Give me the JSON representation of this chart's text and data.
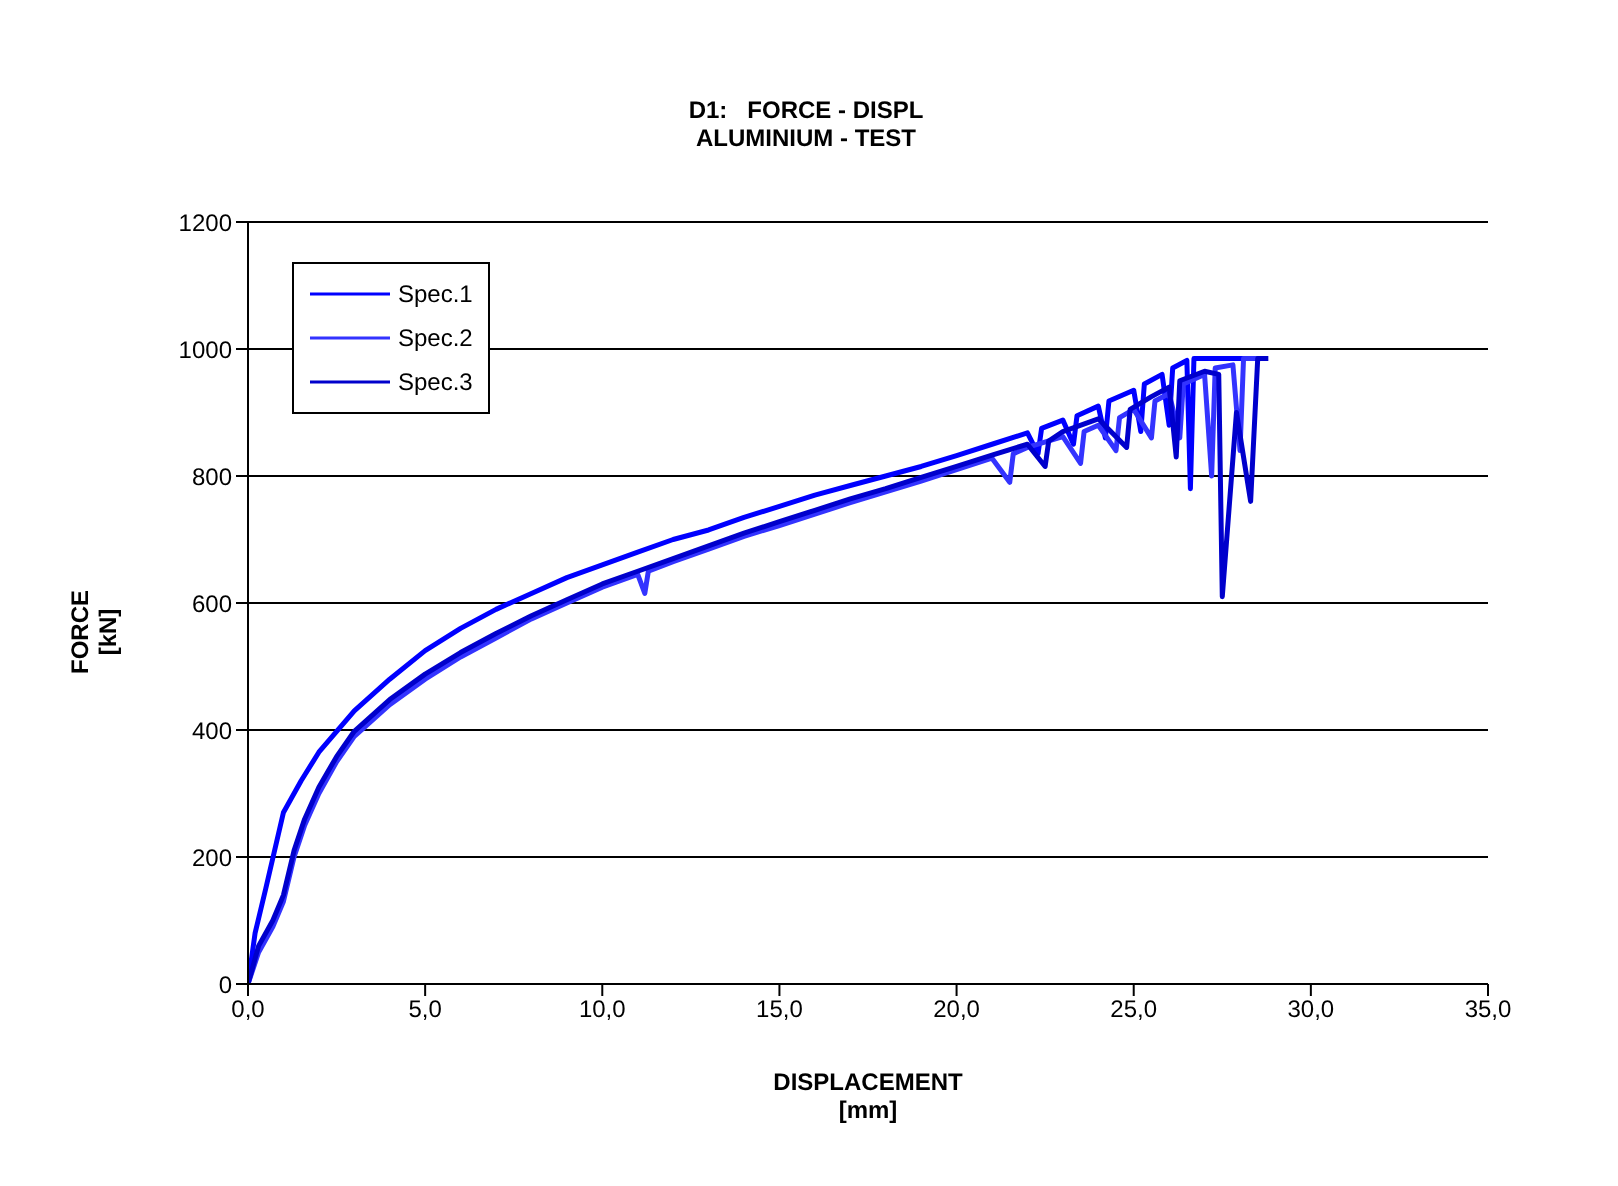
{
  "chart_data": {
    "type": "line",
    "title": "D1:   FORCE - DISPL",
    "subtitle": "ALUMINIUM - TEST",
    "xlabel": "DISPLACEMENT\n[mm]",
    "ylabel": "FORCE\n[kN]",
    "xlim": [
      0,
      35
    ],
    "xticks": [
      {
        "value": 0,
        "label": "0,0"
      },
      {
        "value": 5,
        "label": "5,0"
      },
      {
        "value": 10,
        "label": "10,0"
      },
      {
        "value": 15,
        "label": "15,0"
      },
      {
        "value": 20,
        "label": "20,0"
      },
      {
        "value": 25,
        "label": "25,0"
      },
      {
        "value": 30,
        "label": "30,0"
      },
      {
        "value": 35,
        "label": "35,0"
      }
    ],
    "ylim": [
      0,
      1200
    ],
    "yticks": [
      0,
      200,
      400,
      600,
      800,
      1000,
      1200
    ],
    "grid": "y",
    "legend": "top left",
    "series": [
      {
        "name": "Spec.1",
        "color": "#0000ff",
        "x": [
          0,
          0.2,
          0.5,
          1,
          1.5,
          2,
          3,
          4,
          5,
          6,
          7,
          8,
          9,
          10,
          11,
          12,
          13,
          14,
          15,
          16,
          17,
          18,
          19,
          20,
          21,
          22,
          22.3,
          22.4,
          23,
          23.3,
          23.4,
          24,
          24.2,
          24.3,
          25,
          25.2,
          25.3,
          25.8,
          26,
          26.1,
          26.5,
          26.6,
          26.7,
          28.7
        ],
        "values": [
          0,
          80,
          150,
          270,
          320,
          365,
          430,
          480,
          525,
          560,
          590,
          615,
          640,
          660,
          680,
          700,
          715,
          735,
          752,
          770,
          785,
          800,
          815,
          832,
          850,
          868,
          835,
          875,
          888,
          850,
          895,
          910,
          860,
          918,
          935,
          870,
          945,
          960,
          880,
          970,
          982,
          780,
          985,
          985
        ]
      },
      {
        "name": "Spec.2",
        "color": "#3333ff",
        "x": [
          0,
          0.3,
          0.7,
          1,
          1.3,
          1.6,
          2,
          2.5,
          3,
          4,
          5,
          6,
          7,
          8,
          9,
          10,
          11,
          11.2,
          11.3,
          12,
          13,
          14,
          15,
          16,
          17,
          18,
          19,
          20,
          21,
          21.5,
          21.6,
          22,
          23,
          23.5,
          23.6,
          24,
          24.5,
          24.6,
          25,
          25.5,
          25.6,
          26,
          26.3,
          26.4,
          27,
          27.2,
          27.3,
          27.8,
          28,
          28.1,
          28.6
        ],
        "values": [
          0,
          50,
          90,
          130,
          200,
          250,
          300,
          350,
          390,
          440,
          480,
          515,
          545,
          575,
          600,
          625,
          645,
          615,
          650,
          665,
          685,
          705,
          722,
          740,
          758,
          775,
          792,
          810,
          828,
          790,
          835,
          845,
          862,
          820,
          870,
          880,
          840,
          892,
          905,
          860,
          918,
          930,
          860,
          945,
          960,
          800,
          970,
          975,
          840,
          985,
          985
        ]
      },
      {
        "name": "Spec.3",
        "color": "#0000cc",
        "x": [
          0,
          0.3,
          0.7,
          1,
          1.3,
          1.6,
          2,
          2.5,
          3,
          4,
          5,
          6,
          7,
          8,
          9,
          10,
          11,
          12,
          13,
          14,
          15,
          16,
          17,
          18,
          19,
          20,
          21,
          22,
          22.5,
          22.6,
          23,
          24,
          24.8,
          24.9,
          25.5,
          26,
          26.2,
          26.3,
          27,
          27.4,
          27.5,
          27.9,
          28.3,
          28.5,
          28.8
        ],
        "values": [
          0,
          60,
          100,
          140,
          210,
          260,
          310,
          358,
          398,
          448,
          488,
          522,
          552,
          580,
          605,
          630,
          650,
          670,
          690,
          710,
          728,
          746,
          764,
          780,
          798,
          815,
          833,
          850,
          815,
          855,
          870,
          890,
          845,
          905,
          925,
          940,
          830,
          950,
          965,
          960,
          610,
          900,
          760,
          985,
          985
        ]
      }
    ]
  }
}
